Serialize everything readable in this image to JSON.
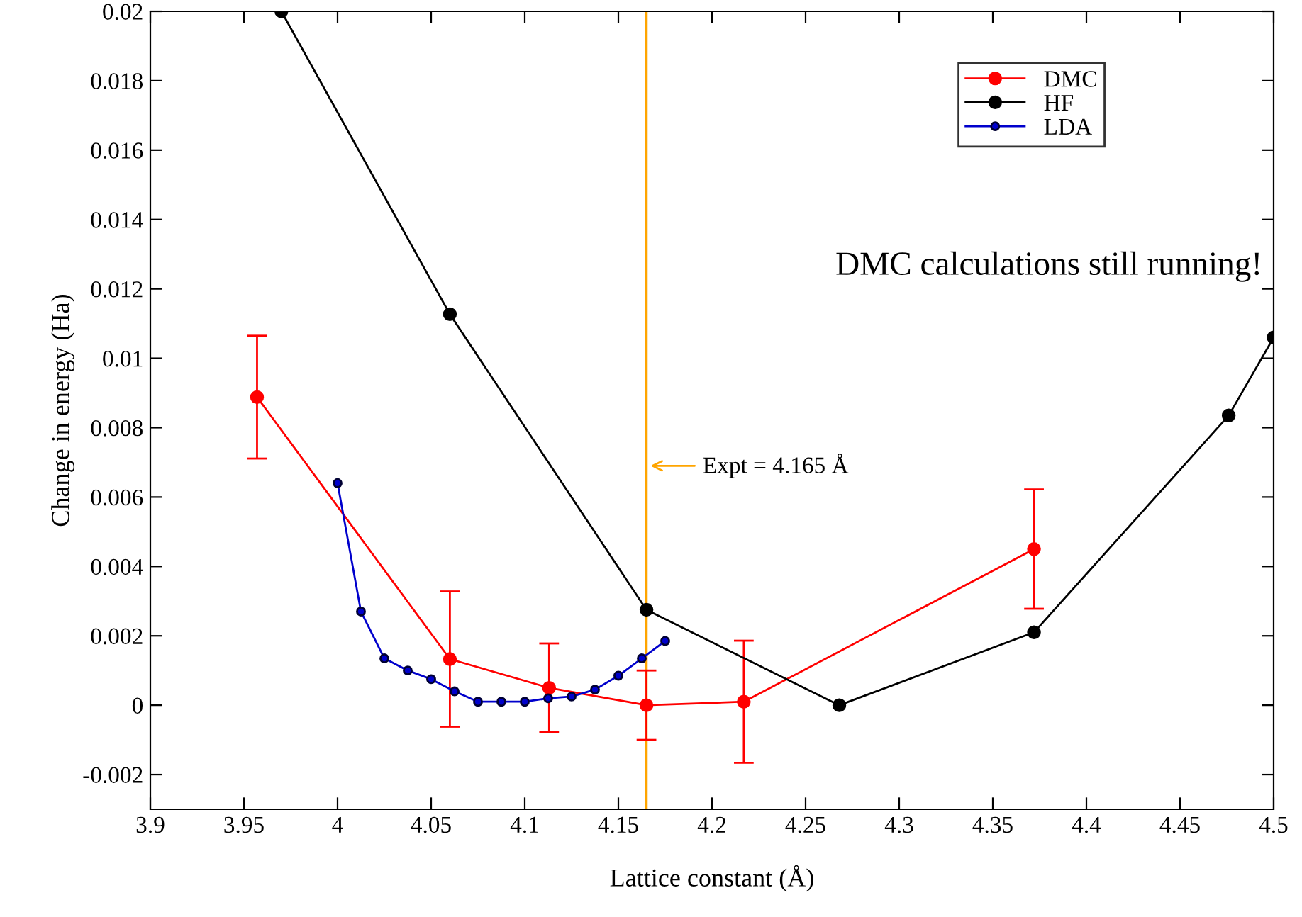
{
  "chart_data": {
    "type": "line",
    "xlabel": "Lattice constant (Å)",
    "ylabel": "Change in energy (Ha)",
    "xlim": [
      3.9,
      4.5
    ],
    "xticks": [
      3.9,
      3.95,
      4,
      4.05,
      4.1,
      4.15,
      4.2,
      4.25,
      4.3,
      4.35,
      4.4,
      4.45,
      4.5
    ],
    "ylim": [
      -0.003,
      0.02
    ],
    "yticks": [
      -0.002,
      0,
      0.002,
      0.004,
      0.006,
      0.008,
      0.01,
      0.012,
      0.014,
      0.016,
      0.018,
      0.02
    ],
    "grid": false,
    "legend": "top right",
    "marker": "circle",
    "line_style": "solid",
    "series": [
      {
        "name": "DMC",
        "color": "#ff0000",
        "x": [
          3.957,
          4.06,
          4.113,
          4.165,
          4.217,
          4.372
        ],
        "values": [
          0.00888,
          0.00133,
          0.0005,
          0.0,
          0.0001,
          0.0045
        ],
        "errors": [
          0.00177,
          0.00195,
          0.00128,
          0.001,
          0.00176,
          0.00172
        ]
      },
      {
        "name": "HF",
        "color": "#000000",
        "x": [
          3.97,
          4.06,
          4.165,
          4.268,
          4.372,
          4.476,
          4.5
        ],
        "values": [
          0.02,
          0.01127,
          0.00275,
          0.0,
          0.0021,
          0.00835,
          0.0106
        ]
      },
      {
        "name": "LDA",
        "color": "#0000cc",
        "x": [
          4.0,
          4.0125,
          4.025,
          4.0375,
          4.05,
          4.0625,
          4.075,
          4.0875,
          4.1,
          4.1125,
          4.125,
          4.1375,
          4.15,
          4.1625,
          4.175
        ],
        "values": [
          0.0064,
          0.0027,
          0.00135,
          0.001,
          0.00075,
          0.0004,
          0.0001,
          0.0001,
          0.0001,
          0.0002,
          0.00025,
          0.00045,
          0.00085,
          0.00135,
          0.00185
        ]
      }
    ],
    "ref_lines": [
      {
        "axis": "x",
        "value": 4.165,
        "color": "#ffa500"
      }
    ],
    "annotations": [
      {
        "text": "Expt = 4.165 Å",
        "x": 4.165,
        "y": 0.0069
      },
      "DMC calculations still running!"
    ]
  }
}
